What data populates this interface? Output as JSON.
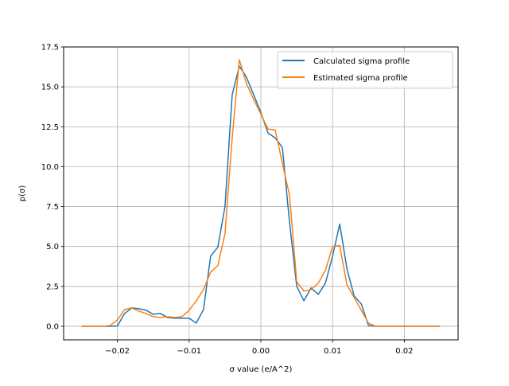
{
  "chart_data": {
    "type": "line",
    "title": "",
    "xlabel": "σ value (e/A^2)",
    "ylabel": "p(σ)",
    "xlim": [
      -0.0275,
      0.0275
    ],
    "ylim": [
      -0.85,
      17.5
    ],
    "xticks": [
      -0.02,
      -0.01,
      0.0,
      0.01,
      0.02
    ],
    "xtick_labels": [
      "−0.02",
      "−0.01",
      "0.00",
      "0.01",
      "0.02"
    ],
    "yticks": [
      0.0,
      2.5,
      5.0,
      7.5,
      10.0,
      12.5,
      15.0,
      17.5
    ],
    "ytick_labels": [
      "0.0",
      "2.5",
      "5.0",
      "7.5",
      "10.0",
      "12.5",
      "15.0",
      "17.5"
    ],
    "grid": true,
    "legend_position": "upper-right",
    "series": [
      {
        "name": "Calculated sigma profile",
        "color": "#1f77b4",
        "x": [
          -0.025,
          -0.024,
          -0.023,
          -0.022,
          -0.021,
          -0.02,
          -0.019,
          -0.018,
          -0.017,
          -0.016,
          -0.015,
          -0.014,
          -0.013,
          -0.012,
          -0.011,
          -0.01,
          -0.009,
          -0.008,
          -0.007,
          -0.006,
          -0.005,
          -0.004,
          -0.003,
          -0.002,
          -0.001,
          0.0,
          0.001,
          0.002,
          0.003,
          0.004,
          0.005,
          0.006,
          0.007,
          0.008,
          0.009,
          0.01,
          0.011,
          0.012,
          0.013,
          0.014,
          0.015,
          0.016,
          0.017,
          0.018,
          0.019,
          0.02,
          0.021,
          0.022,
          0.023,
          0.024,
          0.025
        ],
        "y": [
          0,
          0,
          0,
          0,
          0,
          0.02,
          0.8,
          1.15,
          1.1,
          1.0,
          0.75,
          0.8,
          0.55,
          0.5,
          0.5,
          0.5,
          0.2,
          1.05,
          4.4,
          4.95,
          7.5,
          14.5,
          16.3,
          15.6,
          14.5,
          13.4,
          12.1,
          11.8,
          11.2,
          6.5,
          2.5,
          1.6,
          2.4,
          2.0,
          2.7,
          4.4,
          6.4,
          3.6,
          1.9,
          1.4,
          0.05,
          0,
          0,
          0,
          0,
          0,
          0,
          0,
          0,
          0,
          0
        ]
      },
      {
        "name": "Estimated sigma profile",
        "color": "#ff7f0e",
        "x": [
          -0.025,
          -0.024,
          -0.023,
          -0.022,
          -0.021,
          -0.02,
          -0.019,
          -0.018,
          -0.017,
          -0.016,
          -0.015,
          -0.014,
          -0.013,
          -0.012,
          -0.011,
          -0.01,
          -0.009,
          -0.008,
          -0.007,
          -0.006,
          -0.005,
          -0.004,
          -0.003,
          -0.002,
          -0.001,
          0.0,
          0.001,
          0.002,
          0.003,
          0.004,
          0.005,
          0.006,
          0.007,
          0.008,
          0.009,
          0.01,
          0.011,
          0.012,
          0.013,
          0.014,
          0.015,
          0.016,
          0.017,
          0.018,
          0.019,
          0.02,
          0.021,
          0.022,
          0.023,
          0.024,
          0.025
        ],
        "y": [
          0,
          0,
          0,
          0,
          0.05,
          0.4,
          1.05,
          1.15,
          0.95,
          0.8,
          0.6,
          0.55,
          0.6,
          0.55,
          0.6,
          1.0,
          1.6,
          2.3,
          3.4,
          3.8,
          5.8,
          11.8,
          16.7,
          15.2,
          14.2,
          13.3,
          12.35,
          12.3,
          10.2,
          8.2,
          2.8,
          2.2,
          2.3,
          2.7,
          3.5,
          5.0,
          5.05,
          2.6,
          1.8,
          1.0,
          0.2,
          0,
          0,
          0,
          0,
          0,
          0,
          0,
          0,
          0,
          0
        ]
      }
    ]
  }
}
